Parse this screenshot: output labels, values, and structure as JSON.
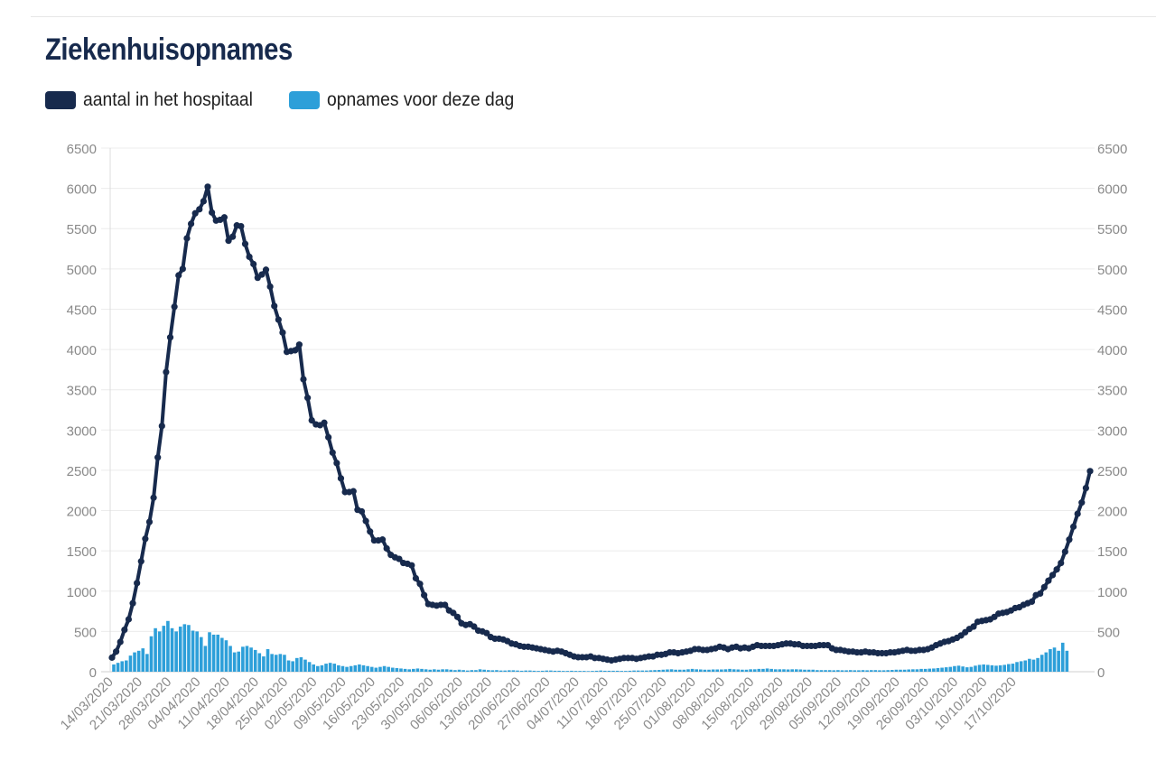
{
  "title": "Ziekenhuisopnames",
  "legend": [
    {
      "label": "aantal in het hospitaal",
      "color": "#172a4d"
    },
    {
      "label": "opnames voor deze dag",
      "color": "#2d9fd9"
    }
  ],
  "chart_data": {
    "type": "line",
    "ylim": [
      0,
      6500
    ],
    "yticks": [
      0,
      500,
      1000,
      1500,
      2000,
      2500,
      3000,
      3500,
      4000,
      4500,
      5000,
      5500,
      6000,
      6500
    ],
    "x_tick_labels": [
      "14/03/2020",
      "21/03/2020",
      "28/03/2020",
      "04/04/2020",
      "11/04/2020",
      "18/04/2020",
      "25/04/2020",
      "02/05/2020",
      "09/05/2020",
      "16/05/2020",
      "23/05/2020",
      "30/05/2020",
      "06/06/2020",
      "13/06/2020",
      "20/06/2020",
      "27/06/2020",
      "04/07/2020",
      "11/07/2020",
      "18/07/2020",
      "25/07/2020",
      "01/08/2020",
      "08/08/2020",
      "15/08/2020",
      "22/08/2020",
      "29/08/2020",
      "05/09/2020",
      "12/09/2020",
      "19/09/2020",
      "26/09/2020",
      "03/10/2020",
      "10/10/2020",
      "17/10/2020"
    ],
    "grid": true,
    "legend_position": "top-left",
    "series": [
      {
        "name": "aantal in het hospitaal",
        "kind": "line",
        "color": "#172a4d",
        "values": [
          175,
          250,
          370,
          520,
          650,
          850,
          1100,
          1370,
          1650,
          1860,
          2160,
          2660,
          3050,
          3720,
          4150,
          4530,
          4920,
          5000,
          5380,
          5560,
          5690,
          5740,
          5840,
          6020,
          5700,
          5600,
          5610,
          5640,
          5350,
          5400,
          5540,
          5530,
          5310,
          5150,
          5060,
          4890,
          4930,
          4990,
          4780,
          4540,
          4370,
          4210,
          3970,
          3980,
          3990,
          4060,
          3630,
          3400,
          3120,
          3070,
          3060,
          3090,
          2910,
          2720,
          2590,
          2400,
          2230,
          2230,
          2240,
          2010,
          1990,
          1870,
          1740,
          1630,
          1630,
          1640,
          1530,
          1450,
          1420,
          1400,
          1350,
          1340,
          1320,
          1160,
          1090,
          950,
          840,
          830,
          820,
          830,
          830,
          760,
          730,
          680,
          600,
          580,
          590,
          560,
          510,
          500,
          480,
          430,
          410,
          410,
          400,
          380,
          350,
          340,
          320,
          310,
          310,
          300,
          290,
          280,
          270,
          260,
          250,
          260,
          250,
          230,
          210,
          190,
          180,
          180,
          180,
          190,
          170,
          170,
          160,
          150,
          140,
          150,
          160,
          170,
          170,
          170,
          160,
          170,
          180,
          190,
          190,
          210,
          210,
          220,
          240,
          240,
          230,
          240,
          250,
          260,
          280,
          280,
          270,
          270,
          280,
          290,
          310,
          300,
          280,
          300,
          310,
          290,
          300,
          290,
          310,
          330,
          320,
          320,
          320,
          320,
          330,
          340,
          350,
          350,
          340,
          340,
          320,
          320,
          320,
          320,
          330,
          330,
          330,
          290,
          270,
          270,
          260,
          250,
          250,
          240,
          240,
          250,
          240,
          240,
          230,
          230,
          230,
          240,
          240,
          250,
          260,
          270,
          260,
          260,
          270,
          270,
          280,
          300,
          330,
          350,
          370,
          380,
          400,
          420,
          450,
          490,
          530,
          560,
          620,
          630,
          640,
          650,
          680,
          720,
          730,
          740,
          760,
          790,
          800,
          830,
          850,
          870,
          950,
          970,
          1050,
          1130,
          1200,
          1270,
          1350,
          1490,
          1640,
          1800,
          1960,
          2100,
          2280,
          2490
        ]
      },
      {
        "name": "opnames voor deze dag",
        "kind": "bar",
        "color": "#2d9fd9",
        "values": [
          90,
          110,
          130,
          140,
          200,
          240,
          260,
          290,
          220,
          440,
          540,
          500,
          570,
          630,
          540,
          500,
          560,
          590,
          580,
          510,
          500,
          430,
          320,
          490,
          460,
          460,
          420,
          390,
          320,
          240,
          250,
          310,
          320,
          300,
          270,
          230,
          190,
          280,
          220,
          210,
          220,
          210,
          140,
          130,
          170,
          180,
          150,
          120,
          90,
          70,
          80,
          100,
          110,
          100,
          80,
          70,
          60,
          70,
          80,
          90,
          80,
          70,
          60,
          50,
          60,
          70,
          60,
          50,
          45,
          40,
          35,
          30,
          35,
          40,
          35,
          30,
          25,
          30,
          25,
          30,
          30,
          25,
          20,
          25,
          20,
          15,
          20,
          20,
          30,
          25,
          20,
          18,
          20,
          15,
          15,
          18,
          18,
          15,
          12,
          15,
          15,
          12,
          10,
          12,
          15,
          15,
          12,
          12,
          10,
          10,
          12,
          10,
          10,
          10,
          8,
          10,
          12,
          15,
          12,
          12,
          12,
          12,
          10,
          10,
          12,
          15,
          15,
          15,
          15,
          18,
          20,
          22,
          25,
          28,
          30,
          25,
          25,
          25,
          30,
          35,
          30,
          28,
          25,
          25,
          28,
          28,
          28,
          30,
          35,
          30,
          28,
          25,
          25,
          30,
          30,
          35,
          35,
          40,
          35,
          30,
          30,
          30,
          28,
          30,
          30,
          28,
          25,
          25,
          25,
          20,
          20,
          20,
          20,
          18,
          20,
          18,
          18,
          20,
          18,
          18,
          20,
          18,
          20,
          20,
          18,
          18,
          20,
          22,
          25,
          25,
          25,
          28,
          30,
          30,
          35,
          35,
          38,
          40,
          45,
          50,
          55,
          60,
          70,
          75,
          65,
          55,
          60,
          75,
          85,
          90,
          85,
          80,
          75,
          80,
          85,
          95,
          100,
          120,
          130,
          140,
          160,
          150,
          170,
          210,
          240,
          280,
          300,
          260,
          360,
          260
        ]
      }
    ]
  }
}
